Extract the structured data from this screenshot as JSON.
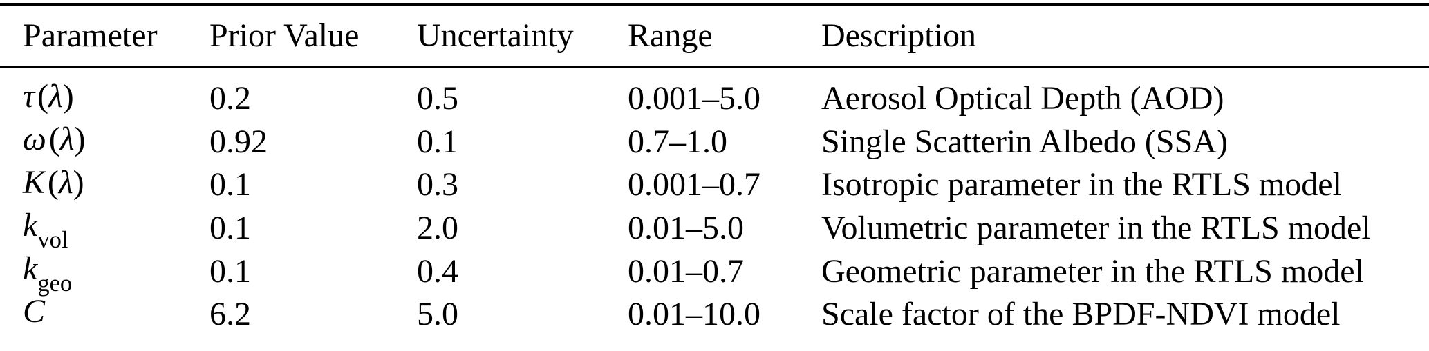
{
  "table": {
    "headers": [
      "Parameter",
      "Prior Value",
      "Uncertainty",
      "Range",
      "Description"
    ],
    "rows": [
      {
        "param": {
          "main": "τ",
          "sub": "",
          "open": "(",
          "arg": "λ",
          "close": ")"
        },
        "prior": "0.2",
        "uncertainty": "0.5",
        "range": "0.001–5.0",
        "description": "Aerosol Optical Depth (AOD)"
      },
      {
        "param": {
          "main": "ω",
          "sub": "",
          "open": "(",
          "arg": "λ",
          "close": ")"
        },
        "prior": "0.92",
        "uncertainty": "0.1",
        "range": "0.7–1.0",
        "description": "Single Scatterin Albedo (SSA)"
      },
      {
        "param": {
          "main": "K",
          "sub": "",
          "open": "(",
          "arg": "λ",
          "close": ")"
        },
        "prior": "0.1",
        "uncertainty": "0.3",
        "range": "0.001–0.7",
        "description": "Isotropic parameter in the RTLS model"
      },
      {
        "param": {
          "main": "k",
          "sub": "vol",
          "open": "",
          "arg": "",
          "close": ""
        },
        "prior": "0.1",
        "uncertainty": "2.0",
        "range": "0.01–5.0",
        "description": "Volumetric parameter in the RTLS model"
      },
      {
        "param": {
          "main": "k",
          "sub": "geo",
          "open": "",
          "arg": "",
          "close": ""
        },
        "prior": "0.1",
        "uncertainty": "0.4",
        "range": "0.01–0.7",
        "description": "Geometric parameter in the RTLS model"
      },
      {
        "param": {
          "main": "C",
          "sub": "",
          "open": "",
          "arg": "",
          "close": ""
        },
        "prior": "6.2",
        "uncertainty": "5.0",
        "range": "0.01–10.0",
        "description": "Scale factor of the BPDF-NDVI model"
      }
    ],
    "colors": {
      "text": "#000000",
      "background": "#ffffff",
      "rule": "#000000"
    }
  }
}
